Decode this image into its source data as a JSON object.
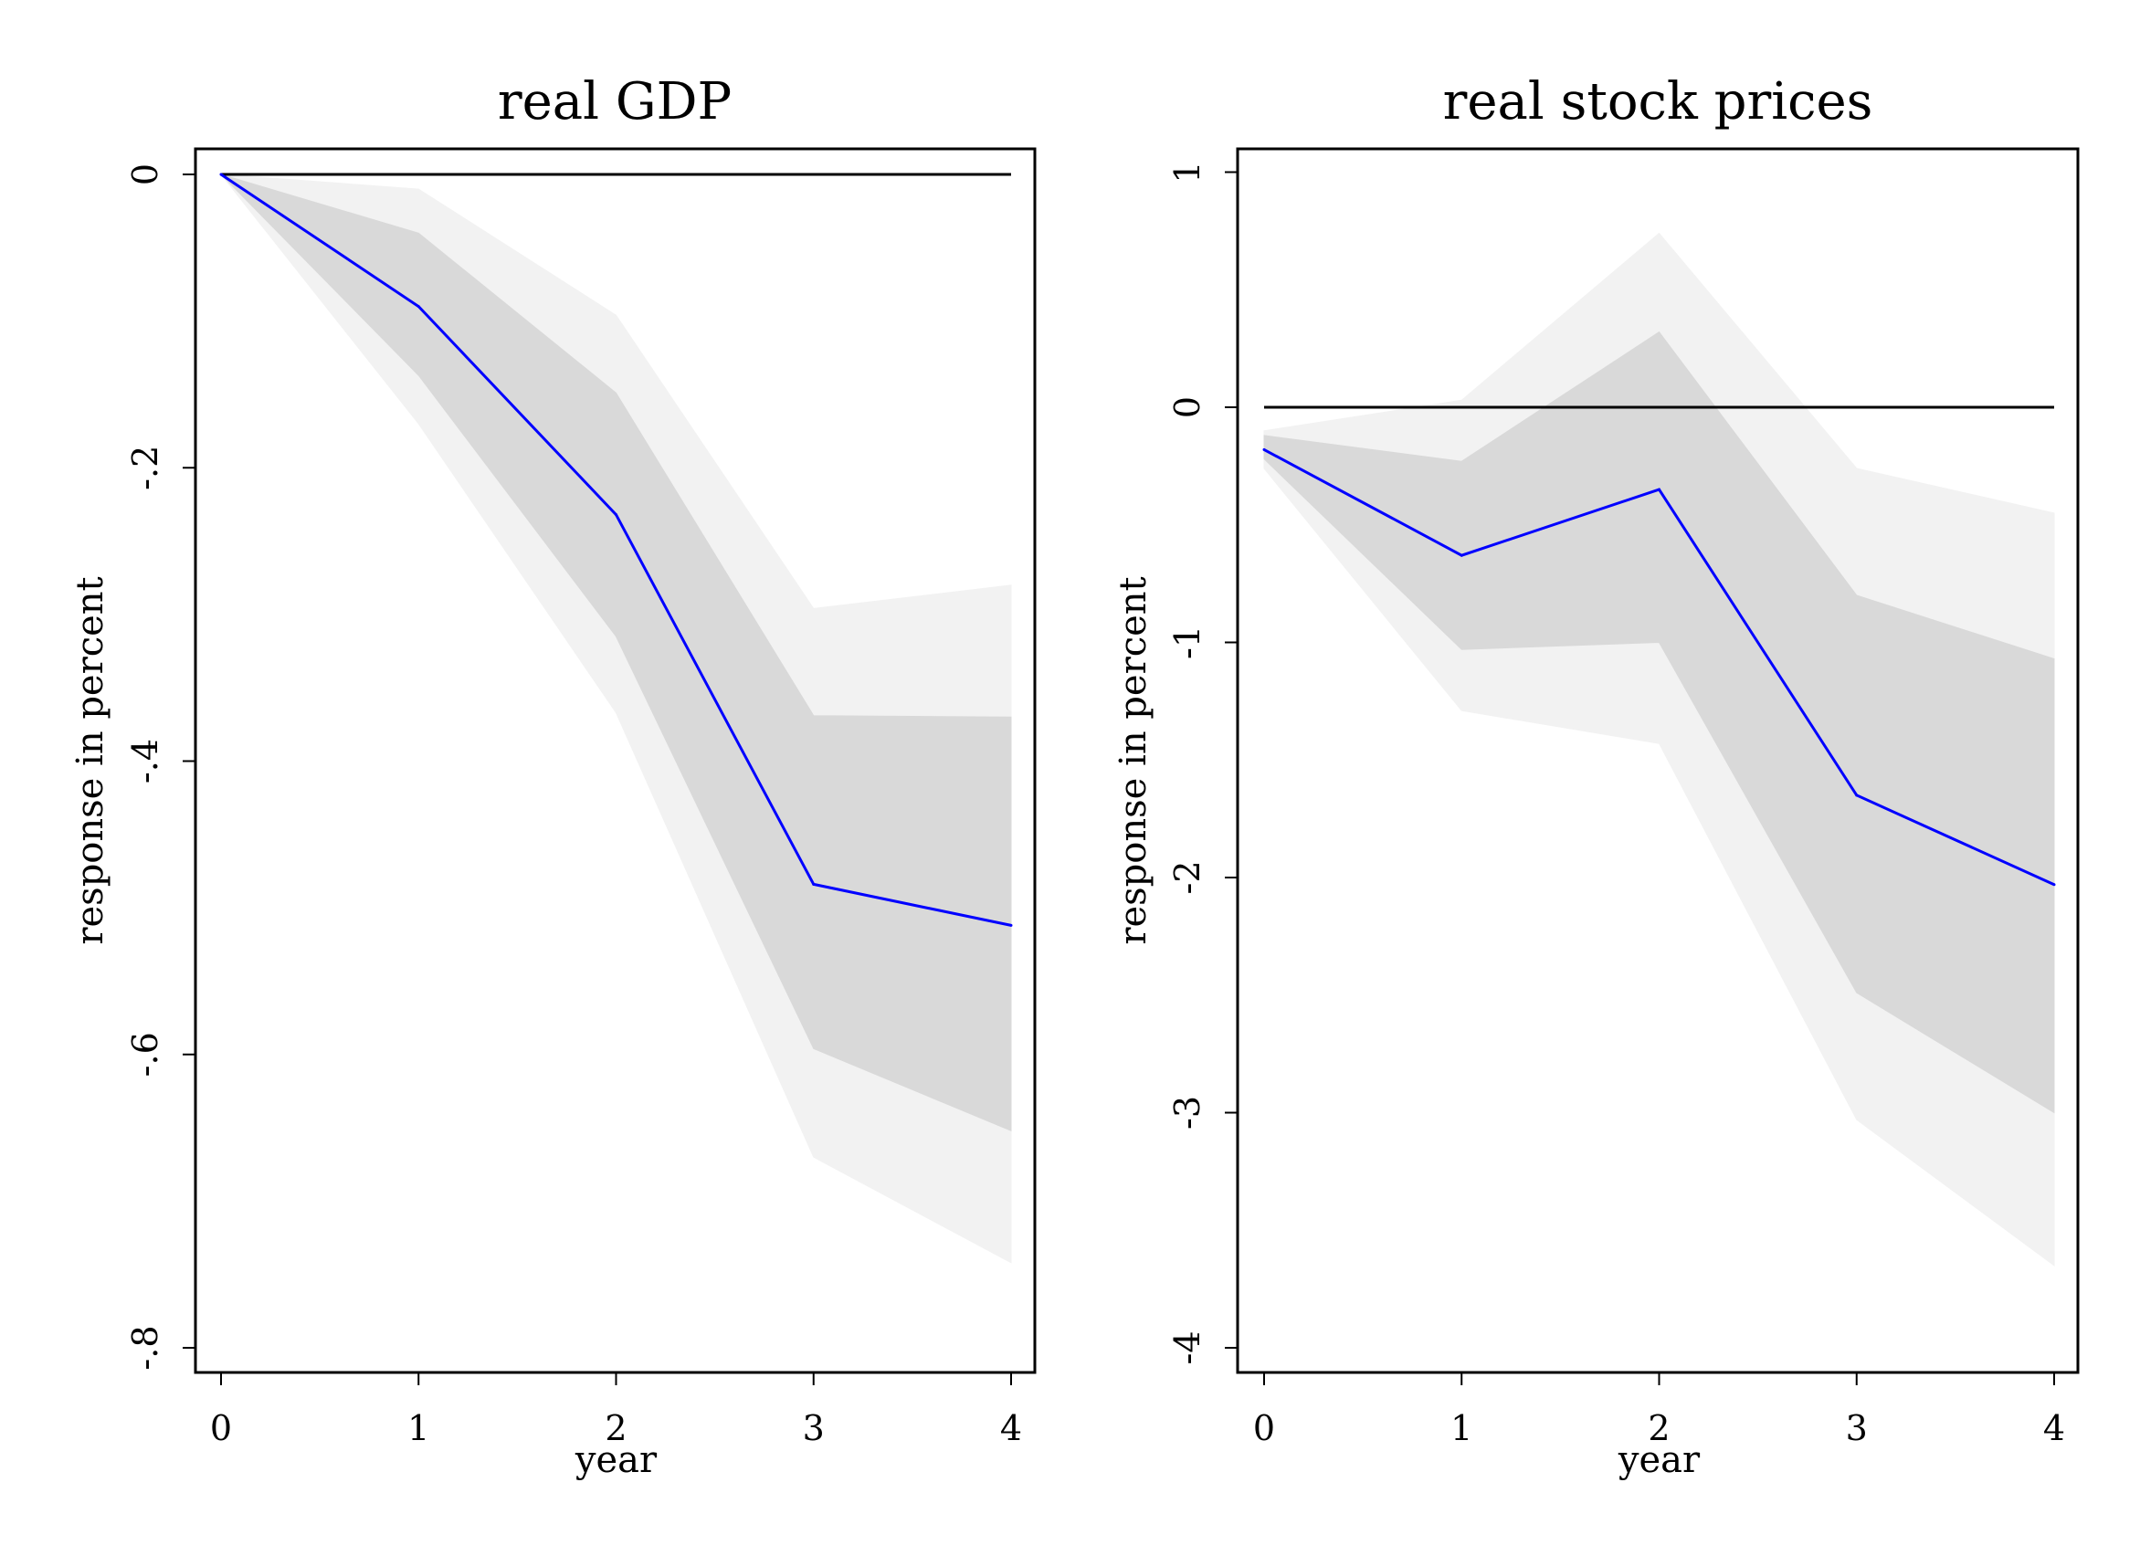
{
  "chart_data": [
    {
      "type": "line",
      "title": "real GDP",
      "xlabel": "year",
      "ylabel": "response in percent",
      "x": [
        0,
        1,
        2,
        3,
        4
      ],
      "xticks": [
        "0",
        "1",
        "2",
        "3",
        "4"
      ],
      "yticks": [
        0,
        -0.2,
        -0.4,
        -0.6,
        -0.8
      ],
      "ytick_labels": [
        "0",
        "-.2",
        "-.4",
        "-.6",
        "-.8"
      ],
      "ylim": [
        -0.8,
        0
      ],
      "zero_line": 0,
      "series": [
        {
          "values": [
            0,
            -0.09,
            -0.232,
            -0.484,
            -0.512
          ],
          "color": "#0000ff"
        }
      ],
      "bands": [
        {
          "lower": [
            0,
            -0.17,
            -0.367,
            -0.67,
            -0.742
          ],
          "upper": [
            0,
            -0.01,
            -0.096,
            -0.296,
            -0.28
          ],
          "color": "#f2f2f2"
        },
        {
          "lower": [
            0,
            -0.137,
            -0.315,
            -0.596,
            -0.652
          ],
          "upper": [
            0,
            -0.04,
            -0.149,
            -0.369,
            -0.37
          ],
          "color": "#d9d9d9"
        }
      ],
      "colors": {
        "mean_line": "#0000ff",
        "zero_line": "#000000",
        "outer_band": "#f2f2f2",
        "inner_band": "#d9d9d9"
      }
    },
    {
      "type": "line",
      "title": "real stock prices",
      "xlabel": "year",
      "ylabel": "response in percent",
      "x": [
        0,
        1,
        2,
        3,
        4
      ],
      "xticks": [
        "0",
        "1",
        "2",
        "3",
        "4"
      ],
      "yticks": [
        1,
        0,
        -1,
        -2,
        -3,
        -4
      ],
      "ytick_labels": [
        "1",
        "0",
        "-1",
        "-2",
        "-3",
        "-4"
      ],
      "ylim": [
        -4,
        1
      ],
      "zero_line": 0,
      "series": [
        {
          "values": [
            -0.18,
            -0.63,
            -0.35,
            -1.65,
            -2.03
          ],
          "color": "#0000ff"
        }
      ],
      "bands": [
        {
          "lower": [
            -0.26,
            -1.29,
            -1.43,
            -3.03,
            -3.65
          ],
          "upper": [
            -0.1,
            0.03,
            0.74,
            -0.26,
            -0.45
          ],
          "color": "#f2f2f2"
        },
        {
          "lower": [
            -0.22,
            -1.03,
            -1.0,
            -2.49,
            -3.0
          ],
          "upper": [
            -0.12,
            -0.23,
            0.32,
            -0.8,
            -1.07
          ],
          "color": "#d9d9d9"
        }
      ],
      "colors": {
        "mean_line": "#0000ff",
        "zero_line": "#000000",
        "outer_band": "#f2f2f2",
        "inner_band": "#d9d9d9"
      }
    }
  ]
}
